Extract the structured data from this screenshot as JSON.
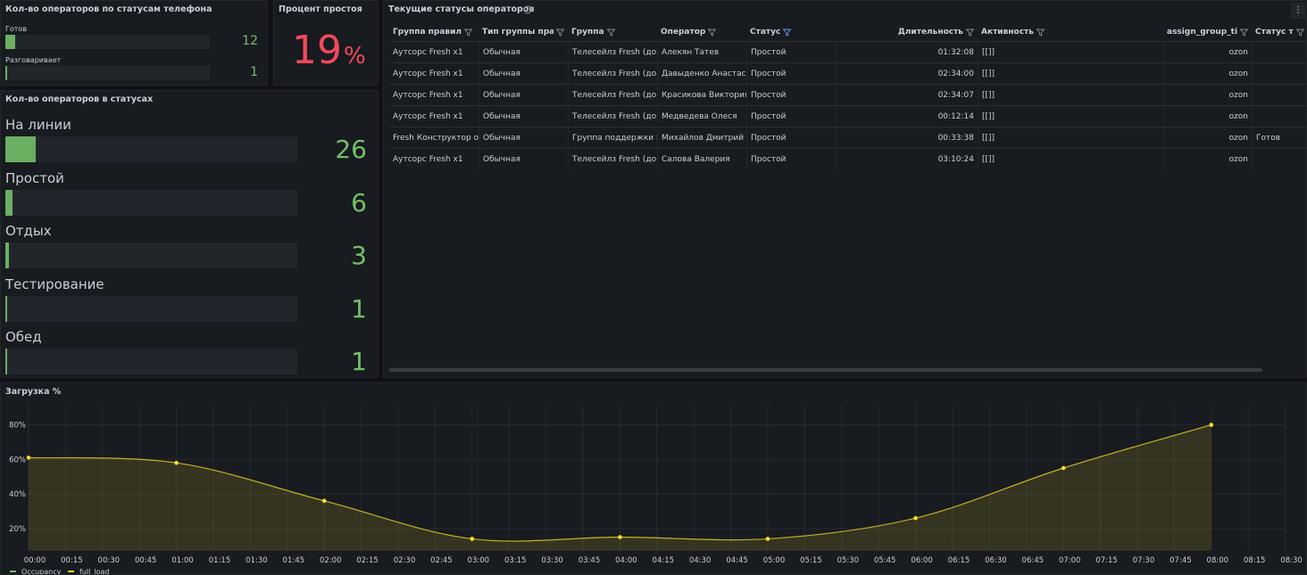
{
  "chart_data": [
    {
      "type": "bargauge",
      "title": "Кол-во операторов по статусам телефона",
      "categories": [
        "Готов",
        "Разговаривает"
      ],
      "values": [
        12,
        1
      ],
      "xlim": [
        0,
        250
      ],
      "color": "#73bf69"
    },
    {
      "type": "stat",
      "title": "Процент простоя",
      "values": [
        19
      ],
      "unit": "%",
      "color": "#f2495c"
    },
    {
      "type": "bargauge",
      "title": "Кол-во операторов в статусах",
      "categories": [
        "На линии",
        "Простой",
        "Отдых",
        "Тестирование",
        "Обед"
      ],
      "values": [
        26,
        6,
        3,
        1,
        1
      ],
      "xlim": [
        0,
        250
      ],
      "color": "#73bf69"
    },
    {
      "type": "line",
      "title": "Загрузка %",
      "x": [
        0,
        60,
        120,
        180,
        240,
        300,
        360,
        420,
        480
      ],
      "series": [
        {
          "name": "Occupancy",
          "color": "#73bf69",
          "values": [
            null,
            null,
            null,
            null,
            null,
            null,
            null,
            null,
            null
          ]
        },
        {
          "name": "full_load",
          "color": "#fade2a",
          "values": [
            61,
            58,
            36,
            14,
            15,
            14,
            26,
            55,
            80
          ]
        }
      ],
      "xlim": [
        0,
        510
      ],
      "xticks": [
        {
          "value": 0,
          "label": "00:00"
        },
        {
          "value": 15,
          "label": "00:15"
        },
        {
          "value": 30,
          "label": "00:30"
        },
        {
          "value": 45,
          "label": "00:45"
        },
        {
          "value": 60,
          "label": "01:00"
        },
        {
          "value": 75,
          "label": "01:15"
        },
        {
          "value": 90,
          "label": "01:30"
        },
        {
          "value": 105,
          "label": "01:45"
        },
        {
          "value": 120,
          "label": "02:00"
        },
        {
          "value": 135,
          "label": "02:15"
        },
        {
          "value": 150,
          "label": "02:30"
        },
        {
          "value": 165,
          "label": "02:45"
        },
        {
          "value": 180,
          "label": "03:00"
        },
        {
          "value": 195,
          "label": "03:15"
        },
        {
          "value": 210,
          "label": "03:30"
        },
        {
          "value": 225,
          "label": "03:45"
        },
        {
          "value": 240,
          "label": "04:00"
        },
        {
          "value": 255,
          "label": "04:15"
        },
        {
          "value": 270,
          "label": "04:30"
        },
        {
          "value": 285,
          "label": "04:45"
        },
        {
          "value": 300,
          "label": "05:00"
        },
        {
          "value": 315,
          "label": "05:15"
        },
        {
          "value": 330,
          "label": "05:30"
        },
        {
          "value": 345,
          "label": "05:45"
        },
        {
          "value": 360,
          "label": "06:00"
        },
        {
          "value": 375,
          "label": "06:15"
        },
        {
          "value": 390,
          "label": "06:30"
        },
        {
          "value": 405,
          "label": "06:45"
        },
        {
          "value": 420,
          "label": "07:00"
        },
        {
          "value": 435,
          "label": "07:15"
        },
        {
          "value": 450,
          "label": "07:30"
        },
        {
          "value": 465,
          "label": "07:45"
        },
        {
          "value": 480,
          "label": "08:00"
        },
        {
          "value": 495,
          "label": "08:15"
        },
        {
          "value": 510,
          "label": "08:30"
        }
      ],
      "ylim": [
        7,
        87
      ],
      "yticks": [
        {
          "value": 20,
          "label": "20%"
        },
        {
          "value": 40,
          "label": "40%"
        },
        {
          "value": 60,
          "label": "60%"
        },
        {
          "value": 80,
          "label": "80%"
        }
      ],
      "grid": true
    }
  ],
  "table": {
    "title": "Текущие статусы операторов",
    "columns": [
      "Группа правил",
      "Тип группы прав",
      "Группа",
      "Оператор",
      "Статус",
      "Длительность",
      "Активность",
      "assign_group_ticl",
      "Статус теле"
    ],
    "rows": [
      [
        "Аутсорс Fresh x1",
        "Обычная",
        "Телесейлз Fresh (до",
        "Алекян Татев",
        "Простой",
        "01:32:08",
        "[[]]",
        "ozon",
        null
      ],
      [
        "Аутсорс Fresh x1",
        "Обычная",
        "Телесейлз Fresh (до",
        "Давыденко Анастас",
        "Простой",
        "02:34:00",
        "[[]]",
        "ozon",
        null
      ],
      [
        "Аутсорс Fresh x1",
        "Обычная",
        "Телесейлз Fresh (до",
        "Красикова Виктория",
        "Простой",
        "02:34:07",
        "[[]]",
        "ozon",
        null
      ],
      [
        "Аутсорс Fresh x1",
        "Обычная",
        "Телесейлз Fresh (до",
        "Медведева Олеся",
        "Простой",
        "00:12:14",
        "[[]]",
        "ozon",
        null
      ],
      [
        "Fresh Конструктор о",
        "Обычная",
        "Группа поддержки F",
        "Михайлов Дмитрий",
        "Простой",
        "00:33:38",
        "[[]]",
        "ozon",
        "Готов"
      ],
      [
        "Аутсорс Fresh x1",
        "Обычная",
        "Телесейлз Fresh (до",
        "Салова Валерия",
        "Простой",
        "03:10:24",
        "[[]]",
        "ozon",
        null
      ]
    ]
  }
}
